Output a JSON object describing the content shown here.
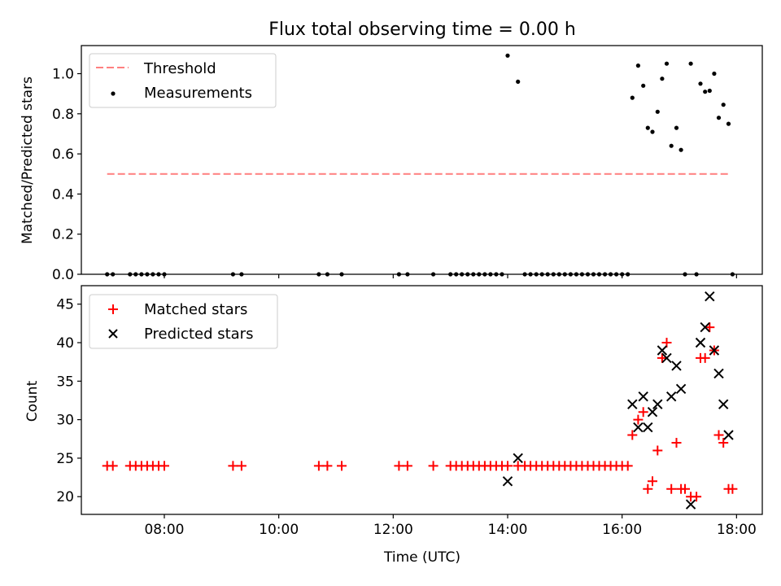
{
  "chart_data": [
    {
      "type": "scatter",
      "title": "Flux total observing time = 0.00 h",
      "xlabel": "",
      "ylabel": "Matched/Predicted stars",
      "xunit": "hours UTC",
      "xlim": [
        6.55,
        18.45
      ],
      "ylim": [
        0,
        1.14
      ],
      "xticks": [
        8,
        10,
        12,
        14,
        16,
        18
      ],
      "xtick_labels": [],
      "yticks": [
        0.0,
        0.2,
        0.4,
        0.6,
        0.8,
        1.0
      ],
      "ytick_labels": [
        "0.0",
        "0.2",
        "0.4",
        "0.6",
        "0.8",
        "1.0"
      ],
      "legend": {
        "position": "top-left",
        "entries": [
          "Threshold",
          "Measurements"
        ]
      },
      "series": [
        {
          "name": "Threshold",
          "kind": "dashed-line",
          "color": "#ff7f7f",
          "x": [
            7.0,
            17.9
          ],
          "y": [
            0.5,
            0.5
          ]
        },
        {
          "name": "Measurements",
          "kind": "dot",
          "color": "#000000",
          "x": [
            7.0,
            7.1,
            7.4,
            7.5,
            7.6,
            7.7,
            7.8,
            7.9,
            8.0,
            9.2,
            9.35,
            10.7,
            10.85,
            11.1,
            12.1,
            12.25,
            12.7,
            13.0,
            13.1,
            13.2,
            13.3,
            13.4,
            13.5,
            13.6,
            13.7,
            13.8,
            13.9,
            14.0,
            14.18,
            14.3,
            14.4,
            14.5,
            14.6,
            14.7,
            14.8,
            14.9,
            15.0,
            15.1,
            15.2,
            15.3,
            15.4,
            15.5,
            15.6,
            15.7,
            15.8,
            15.9,
            16.0,
            16.1,
            16.18,
            16.28,
            16.37,
            16.45,
            16.53,
            16.62,
            16.7,
            16.78,
            16.86,
            16.95,
            17.03,
            17.1,
            17.2,
            17.3,
            17.37,
            17.45,
            17.53,
            17.61,
            17.69,
            17.77,
            17.86,
            17.93
          ],
          "y": [
            0,
            0,
            0,
            0,
            0,
            0,
            0,
            0,
            0,
            0,
            0,
            0,
            0,
            0,
            0,
            0,
            0,
            0,
            0,
            0,
            0,
            0,
            0,
            0,
            0,
            0,
            0,
            1.09,
            0.96,
            0,
            0,
            0,
            0,
            0,
            0,
            0,
            0,
            0,
            0,
            0,
            0,
            0,
            0,
            0,
            0,
            0,
            0,
            0,
            0.88,
            1.04,
            0.94,
            0.73,
            0.71,
            0.81,
            0.975,
            1.05,
            0.64,
            0.73,
            0.62,
            0,
            1.05,
            0,
            0.95,
            0.91,
            0.915,
            1.0,
            0.78,
            0.845,
            0.75,
            0
          ]
        }
      ]
    },
    {
      "type": "scatter",
      "title": "",
      "xlabel": "Time (UTC)",
      "ylabel": "Count",
      "xunit": "hours UTC",
      "xlim": [
        6.55,
        18.45
      ],
      "ylim": [
        17.7,
        47.4
      ],
      "xticks": [
        8,
        10,
        12,
        14,
        16,
        18
      ],
      "xtick_labels": [
        "08:00",
        "10:00",
        "12:00",
        "14:00",
        "16:00",
        "18:00"
      ],
      "yticks": [
        20,
        25,
        30,
        35,
        40,
        45
      ],
      "ytick_labels": [
        "20",
        "25",
        "30",
        "35",
        "40",
        "45"
      ],
      "legend": {
        "position": "top-left",
        "entries": [
          "Matched stars",
          "Predicted stars"
        ]
      },
      "series": [
        {
          "name": "Matched stars",
          "kind": "plus",
          "color": "#ff0000",
          "x": [
            7.0,
            7.1,
            7.4,
            7.5,
            7.6,
            7.7,
            7.8,
            7.9,
            8.0,
            9.2,
            9.35,
            10.7,
            10.85,
            11.1,
            12.1,
            12.25,
            12.7,
            13.0,
            13.1,
            13.2,
            13.3,
            13.4,
            13.5,
            13.6,
            13.7,
            13.8,
            13.9,
            14.0,
            14.18,
            14.3,
            14.4,
            14.5,
            14.6,
            14.7,
            14.8,
            14.9,
            15.0,
            15.1,
            15.2,
            15.3,
            15.4,
            15.5,
            15.6,
            15.7,
            15.8,
            15.9,
            16.0,
            16.1,
            16.18,
            16.28,
            16.37,
            16.45,
            16.53,
            16.62,
            16.7,
            16.78,
            16.86,
            16.95,
            17.03,
            17.1,
            17.2,
            17.3,
            17.37,
            17.45,
            17.53,
            17.61,
            17.69,
            17.77,
            17.86,
            17.93
          ],
          "y": [
            24,
            24,
            24,
            24,
            24,
            24,
            24,
            24,
            24,
            24,
            24,
            24,
            24,
            24,
            24,
            24,
            24,
            24,
            24,
            24,
            24,
            24,
            24,
            24,
            24,
            24,
            24,
            24,
            24,
            24,
            24,
            24,
            24,
            24,
            24,
            24,
            24,
            24,
            24,
            24,
            24,
            24,
            24,
            24,
            24,
            24,
            24,
            24,
            28,
            30,
            31,
            21,
            22,
            26,
            38,
            40,
            21,
            27,
            21,
            21,
            20,
            20,
            38,
            38,
            42,
            39,
            28,
            27,
            21,
            21
          ]
        },
        {
          "name": "Predicted stars",
          "kind": "x",
          "color": "#000000",
          "x": [
            14.0,
            14.18,
            16.18,
            16.28,
            16.37,
            16.45,
            16.53,
            16.62,
            16.7,
            16.78,
            16.86,
            16.95,
            17.03,
            17.2,
            17.37,
            17.45,
            17.53,
            17.61,
            17.69,
            17.77,
            17.86
          ],
          "y": [
            22,
            25,
            32,
            29,
            33,
            29,
            31,
            32,
            39,
            38,
            33,
            37,
            34,
            19,
            40,
            42,
            46,
            39,
            36,
            32,
            28
          ]
        }
      ]
    }
  ]
}
